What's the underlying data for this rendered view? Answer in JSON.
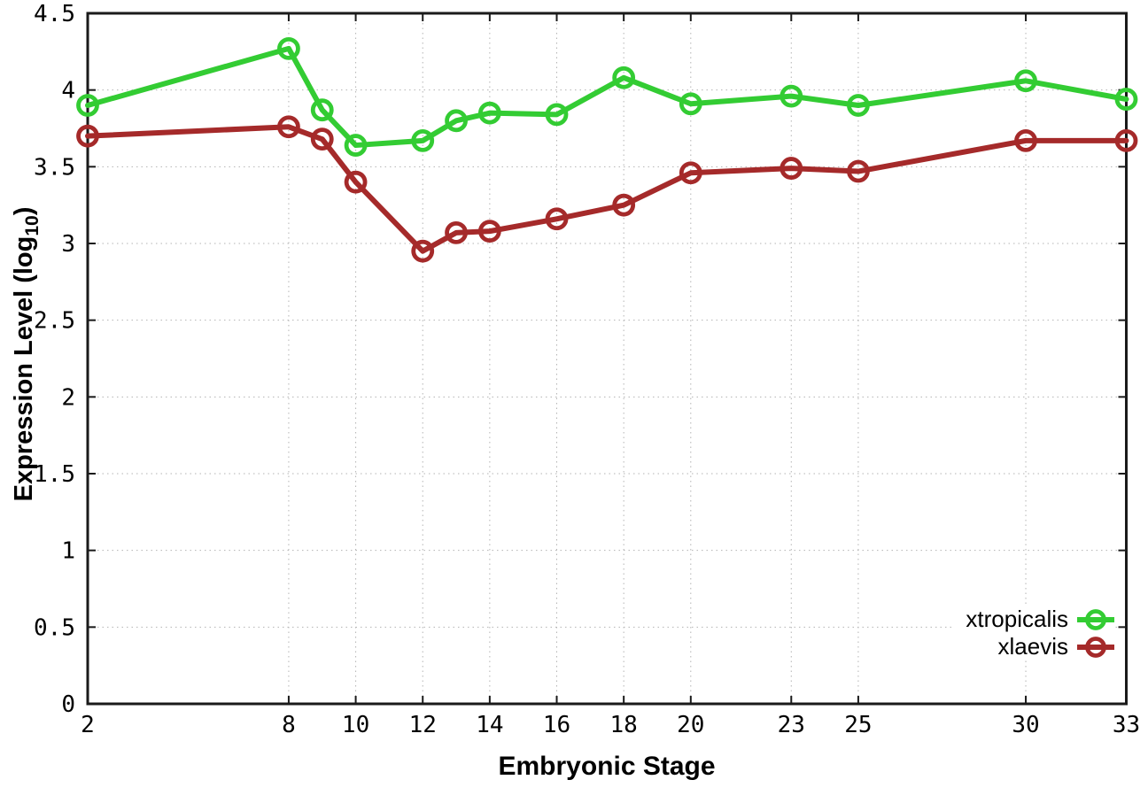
{
  "chart_data": {
    "type": "line",
    "title": "",
    "xlabel": "Embryonic Stage",
    "ylabel": "Expression Level (log10)",
    "ylabel_parts": {
      "pre": "Expression Level (log",
      "sub": "10",
      "post": ")"
    },
    "x": [
      2,
      8,
      9,
      10,
      12,
      13,
      14,
      16,
      18,
      20,
      23,
      25,
      30,
      33
    ],
    "series": [
      {
        "name": "xtropicalis",
        "color": "#33cc33",
        "values": [
          3.9,
          4.27,
          3.87,
          3.64,
          3.67,
          3.8,
          3.85,
          3.84,
          4.08,
          3.91,
          3.96,
          3.9,
          4.06,
          3.94
        ]
      },
      {
        "name": "xlaevis",
        "color": "#a52a2a",
        "values": [
          3.7,
          3.76,
          3.68,
          3.4,
          2.95,
          3.07,
          3.08,
          3.16,
          3.25,
          3.46,
          3.49,
          3.47,
          3.67,
          3.67
        ]
      }
    ],
    "xticks": [
      2,
      8,
      10,
      12,
      14,
      16,
      18,
      20,
      23,
      25,
      30,
      33
    ],
    "yticks": [
      0,
      0.5,
      1,
      1.5,
      2,
      2.5,
      3,
      3.5,
      4,
      4.5
    ],
    "xlim": [
      2,
      33
    ],
    "ylim": [
      0,
      4.5
    ],
    "grid": true,
    "grid_style": "dotted",
    "grid_color": "#b3b3b3",
    "border_color": "#1a1a1a",
    "legend_position": "bottom-right-inside"
  }
}
